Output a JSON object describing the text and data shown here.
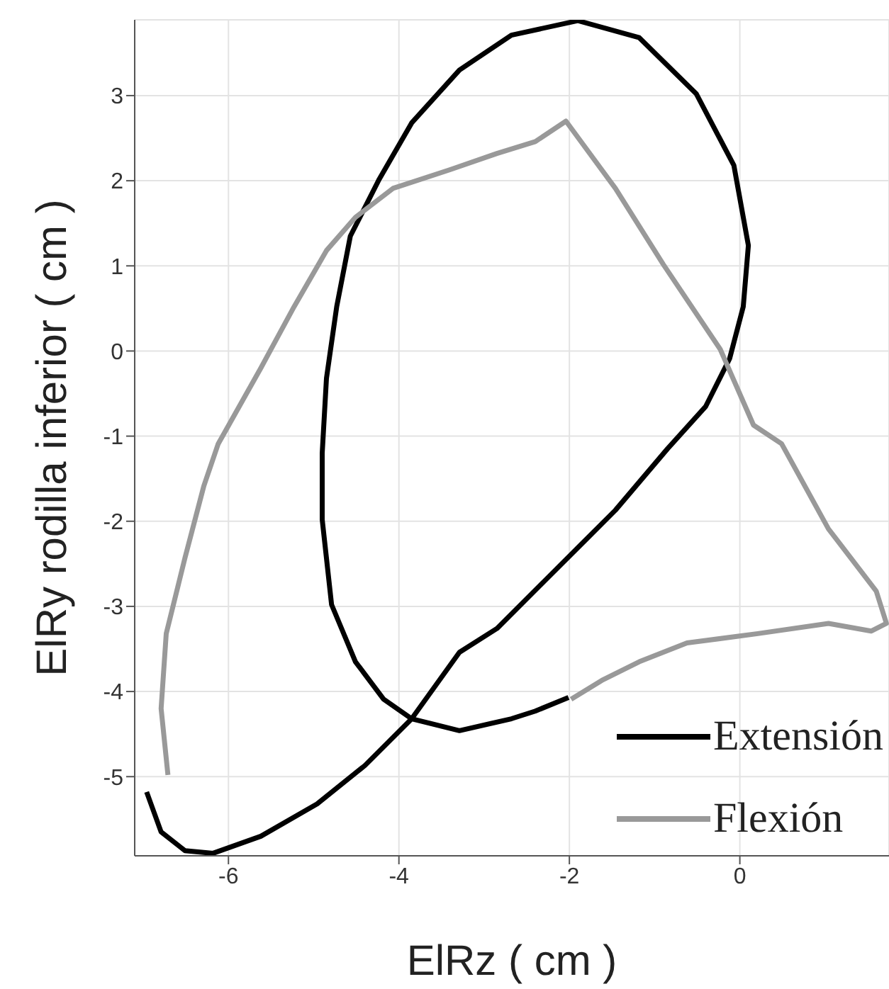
{
  "chart_data": {
    "type": "line",
    "xlabel": "ElRz ( cm )",
    "ylabel": "ElRy rodilla inferior ( cm )",
    "xlim": [
      -7.1,
      1.75
    ],
    "ylim": [
      -5.93,
      3.89
    ],
    "xticks": [
      -6,
      -4,
      -2,
      0
    ],
    "yticks": [
      -5,
      -4,
      -3,
      -2,
      -1,
      0,
      1,
      2,
      3
    ],
    "grid": true,
    "legend": "bottom right",
    "line_style": "solid",
    "marker": "none",
    "series": [
      {
        "name": "Extensión",
        "color": "#000000",
        "x": [
          -6.96,
          -6.79,
          -6.51,
          -6.18,
          -5.62,
          -4.96,
          -4.4,
          -3.85,
          -3.29,
          -2.85,
          -2.29,
          -1.46,
          -0.85,
          -0.4,
          -0.12,
          0.04,
          0.1,
          -0.07,
          -0.51,
          -1.18,
          -1.9,
          -2.68,
          -3.29,
          -3.85,
          -4.23,
          -4.57,
          -4.73,
          -4.85,
          -4.9,
          -4.9,
          -4.79,
          -4.51,
          -4.18,
          -3.85,
          -3.29,
          -2.68,
          -2.4,
          -2.01
        ],
        "values": [
          -5.18,
          -5.65,
          -5.87,
          -5.9,
          -5.7,
          -5.32,
          -4.87,
          -4.32,
          -3.54,
          -3.26,
          -2.7,
          -1.87,
          -1.15,
          -0.65,
          -0.09,
          0.52,
          1.24,
          2.18,
          3.02,
          3.68,
          3.88,
          3.71,
          3.3,
          2.68,
          2.02,
          1.35,
          0.52,
          -0.32,
          -1.2,
          -1.98,
          -2.98,
          -3.65,
          -4.09,
          -4.32,
          -4.46,
          -4.32,
          -4.23,
          -4.07
        ]
      },
      {
        "name": "Flexión",
        "color": "#999999",
        "x": [
          -6.71,
          -6.79,
          -6.73,
          -6.51,
          -6.29,
          -6.12,
          -5.62,
          -5.23,
          -4.85,
          -4.51,
          -4.07,
          -3.4,
          -2.85,
          -2.4,
          -2.04,
          -1.46,
          -0.9,
          -0.23,
          0.16,
          0.49,
          1.04,
          1.6,
          1.72,
          1.54,
          1.04,
          0.21,
          -0.62,
          -1.18,
          -1.62,
          -1.98
        ],
        "values": [
          -4.98,
          -4.2,
          -3.32,
          -2.43,
          -1.59,
          -1.09,
          -0.2,
          0.52,
          1.18,
          1.57,
          1.91,
          2.13,
          2.32,
          2.46,
          2.7,
          1.91,
          1.02,
          0.02,
          -0.87,
          -1.09,
          -2.09,
          -2.82,
          -3.2,
          -3.29,
          -3.2,
          -3.32,
          -3.43,
          -3.65,
          -3.87,
          -4.09
        ]
      }
    ]
  }
}
